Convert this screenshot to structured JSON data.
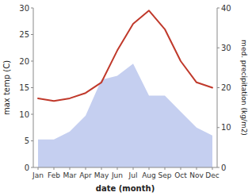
{
  "chart_data": {
    "type": "line",
    "xlabel": "date (month)",
    "ylabel": "max temp (C)",
    "y2label": "med. precipitation (kg/m2)",
    "categories": [
      "Jan",
      "Feb",
      "Mar",
      "Apr",
      "May",
      "Jun",
      "Jul",
      "Aug",
      "Sep",
      "Oct",
      "Nov",
      "Dec"
    ],
    "series": [
      {
        "type": "area",
        "axis": "y2",
        "color": "#c5cff0",
        "values": [
          7,
          7,
          9,
          13,
          22,
          23,
          26,
          18,
          18,
          14,
          10,
          8
        ]
      },
      {
        "type": "line",
        "color": "#c0392b",
        "values": [
          13,
          12.5,
          13,
          14,
          16,
          22,
          27,
          29.5,
          26,
          20,
          16,
          15
        ]
      }
    ],
    "ylim": [
      0,
      30
    ],
    "yticks": [
      0,
      5,
      10,
      15,
      20,
      25,
      30
    ],
    "y2lim": [
      0,
      40
    ],
    "y2ticks": [
      0,
      10,
      20,
      30,
      40
    ],
    "grid": false
  }
}
